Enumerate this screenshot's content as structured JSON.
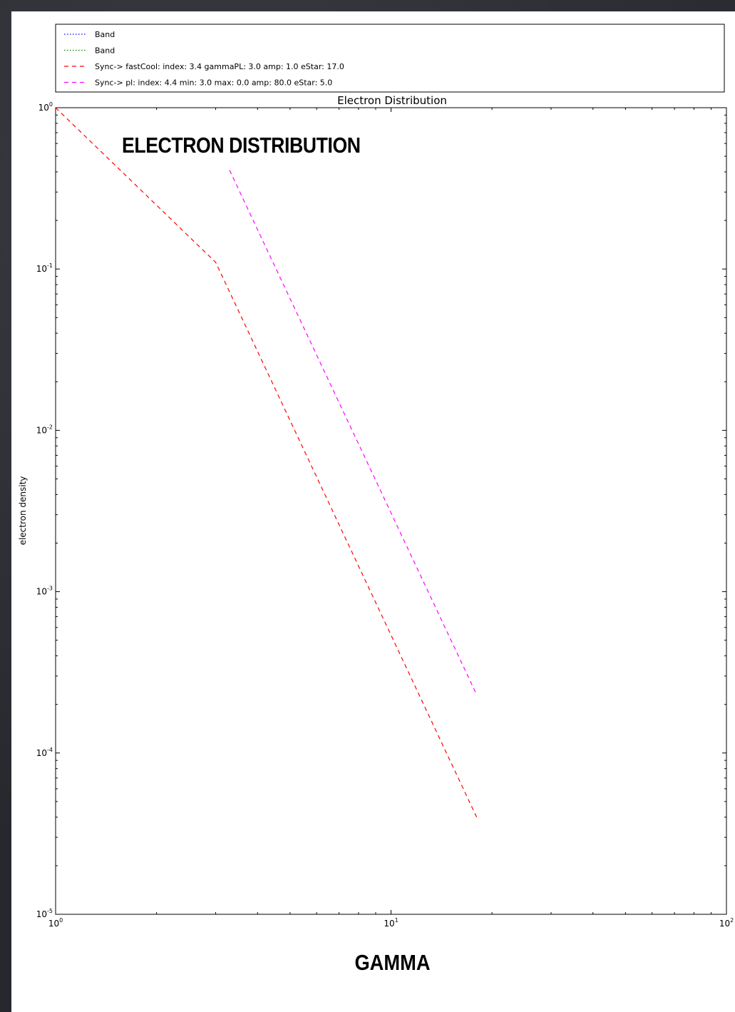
{
  "slide": {
    "heading": "ELECTRON DISTRIBUTION",
    "xlabel": "GAMMA"
  },
  "chart_data": {
    "type": "line",
    "title": "Electron Distribution",
    "xlabel": "",
    "ylabel": "electron density",
    "xscale": "log",
    "yscale": "log",
    "xlim": [
      1,
      100
    ],
    "ylim": [
      1e-05,
      1
    ],
    "x_ticks": [
      1,
      10,
      100
    ],
    "y_ticks": [
      1,
      0.1,
      0.01,
      0.001,
      0.0001,
      1e-05
    ],
    "tick_labels": {
      "x": [
        {
          "base": "10",
          "exp": "0"
        },
        {
          "base": "10",
          "exp": "1"
        },
        {
          "base": "10",
          "exp": "2"
        }
      ],
      "y": [
        {
          "base": "10",
          "exp": "0"
        },
        {
          "base": "10",
          "exp": "-1"
        },
        {
          "base": "10",
          "exp": "-2"
        },
        {
          "base": "10",
          "exp": "-3"
        },
        {
          "base": "10",
          "exp": "-4"
        },
        {
          "base": "10",
          "exp": "-5"
        }
      ]
    },
    "grid": false,
    "legend_position": "above plot",
    "series": [
      {
        "name": "Band",
        "color": "#0000ff",
        "linestyle": "dotted",
        "x": [],
        "y": []
      },
      {
        "name": "Band",
        "color": "#008000",
        "linestyle": "dotted",
        "x": [],
        "y": []
      },
      {
        "name": "Sync->  fastCool: index: 3.4 gammaPL: 3.0 amp: 1.0 eStar: 17.0",
        "color": "#ff0000",
        "linestyle": "dashed",
        "x": [
          1.0,
          3.0,
          18.0
        ],
        "y": [
          1.0,
          0.11,
          4e-05
        ]
      },
      {
        "name": "Sync->  pl: index: 4.4 min: 3.0 max: 0.0 amp: 80.0 eStar: 5.0",
        "color": "#ff00ff",
        "linestyle": "dashed",
        "x": [
          3.3,
          18.0
        ],
        "y": [
          0.41,
          0.00023
        ]
      }
    ]
  }
}
